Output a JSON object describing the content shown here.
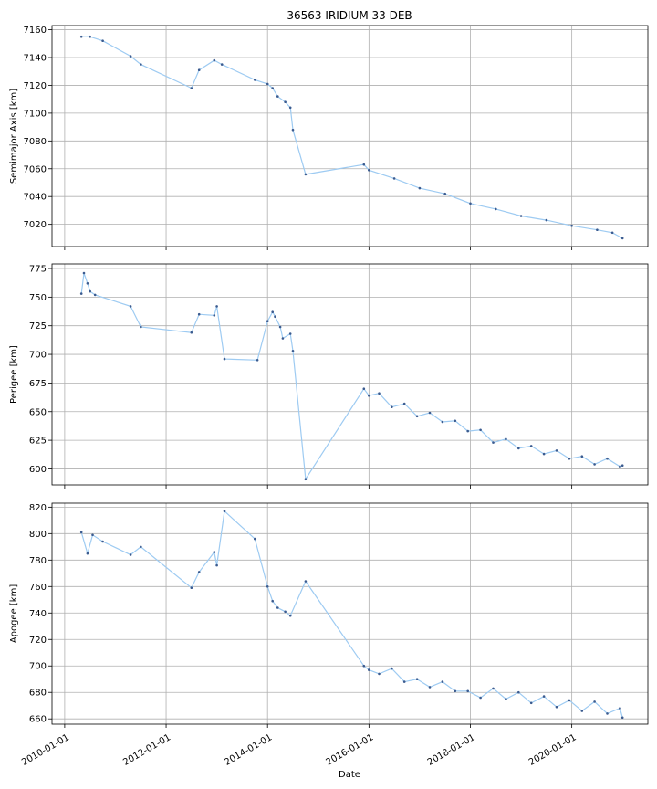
{
  "figure": {
    "title": "36563 IRIDIUM 33 DEB",
    "xlabel": "Date",
    "x_ticks": [
      "2010-01-01",
      "2012-01-01",
      "2014-01-01",
      "2016-01-01",
      "2018-01-01",
      "2020-01-01"
    ],
    "x_tick_years": [
      2010,
      2012,
      2014,
      2016,
      2018,
      2020
    ],
    "xlim": [
      2009.75,
      2021.5
    ],
    "grid": true,
    "colors": {
      "line": "#9ecbf2",
      "points": "#3b5b8f"
    }
  },
  "chart_data": [
    {
      "type": "line",
      "ylabel": "Semimajor Axis [km]",
      "ylim": [
        7004,
        7163
      ],
      "yticks": [
        7020,
        7040,
        7060,
        7080,
        7100,
        7120,
        7140,
        7160
      ],
      "x_unit": "year",
      "x": [
        2010.33,
        2010.5,
        2010.75,
        2011.3,
        2011.5,
        2012.5,
        2012.65,
        2012.95,
        2013.1,
        2013.75,
        2014.0,
        2014.1,
        2014.2,
        2014.35,
        2014.45,
        2014.5,
        2014.75,
        2015.9,
        2016.0,
        2016.5,
        2017.0,
        2017.5,
        2018.0,
        2018.5,
        2019.0,
        2019.5,
        2020.0,
        2020.5,
        2020.8,
        2021.0
      ],
      "y": [
        7155,
        7155,
        7152,
        7141,
        7135,
        7118,
        7131,
        7138,
        7135,
        7124,
        7121,
        7118,
        7112,
        7108,
        7104,
        7088,
        7056,
        7063,
        7059,
        7053,
        7046,
        7042,
        7035,
        7031,
        7026,
        7023,
        7019,
        7016,
        7014,
        7010
      ]
    },
    {
      "type": "line",
      "ylabel": "Perigee [km]",
      "ylim": [
        586,
        779
      ],
      "yticks": [
        600,
        625,
        650,
        675,
        700,
        725,
        750,
        775
      ],
      "x_unit": "year",
      "x": [
        2010.33,
        2010.38,
        2010.45,
        2010.5,
        2010.6,
        2011.3,
        2011.5,
        2012.5,
        2012.65,
        2012.95,
        2013.0,
        2013.15,
        2013.8,
        2014.0,
        2014.1,
        2014.15,
        2014.25,
        2014.3,
        2014.45,
        2014.5,
        2014.75,
        2015.9,
        2016.0,
        2016.2,
        2016.45,
        2016.7,
        2016.95,
        2017.2,
        2017.45,
        2017.7,
        2017.95,
        2018.2,
        2018.45,
        2018.7,
        2018.95,
        2019.2,
        2019.45,
        2019.7,
        2019.95,
        2020.2,
        2020.45,
        2020.7,
        2020.95,
        2021.0
      ],
      "y": [
        753,
        771,
        762,
        755,
        752,
        742,
        724,
        719,
        735,
        734,
        742,
        696,
        695,
        729,
        737,
        733,
        724,
        714,
        718,
        703,
        591,
        670,
        664,
        666,
        654,
        657,
        646,
        649,
        641,
        642,
        633,
        634,
        623,
        626,
        618,
        620,
        613,
        616,
        609,
        611,
        604,
        609,
        602,
        603
      ]
    },
    {
      "type": "line",
      "ylabel": "Apogee [km]",
      "ylim": [
        656,
        823
      ],
      "yticks": [
        660,
        680,
        700,
        720,
        740,
        760,
        780,
        800,
        820
      ],
      "x_unit": "year",
      "x": [
        2010.33,
        2010.45,
        2010.55,
        2010.75,
        2011.3,
        2011.5,
        2012.5,
        2012.65,
        2012.95,
        2013.0,
        2013.15,
        2013.75,
        2014.0,
        2014.1,
        2014.2,
        2014.35,
        2014.45,
        2014.75,
        2015.9,
        2016.0,
        2016.2,
        2016.45,
        2016.7,
        2016.95,
        2017.2,
        2017.45,
        2017.7,
        2017.95,
        2018.2,
        2018.45,
        2018.7,
        2018.95,
        2019.2,
        2019.45,
        2019.7,
        2019.95,
        2020.2,
        2020.45,
        2020.7,
        2020.95,
        2021.0
      ],
      "y": [
        801,
        785,
        799,
        794,
        784,
        790,
        759,
        771,
        786,
        776,
        817,
        796,
        760,
        749,
        744,
        741,
        738,
        764,
        700,
        697,
        694,
        698,
        688,
        690,
        684,
        688,
        681,
        681,
        676,
        683,
        675,
        680,
        672,
        677,
        669,
        674,
        666,
        673,
        664,
        668,
        661
      ]
    }
  ]
}
